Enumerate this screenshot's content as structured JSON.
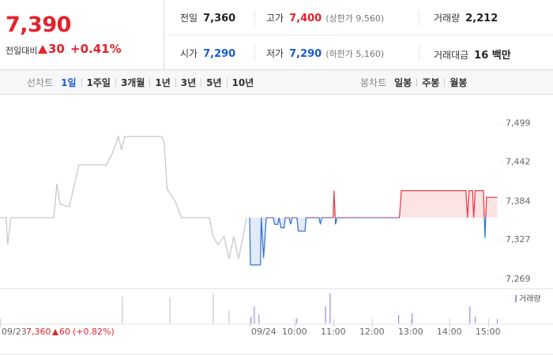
{
  "header": {
    "price": "7,390",
    "change_label": "전일대비",
    "change": "30",
    "change_rate": "+0.41%",
    "color": "#e3222d",
    "stats": [
      {
        "label": "전일",
        "value": "7,360",
        "color": "#222222"
      },
      {
        "label": "고가",
        "value": "7,400",
        "note": "(상한가 9,560)",
        "color": "#e3222d"
      },
      {
        "label": "거래량",
        "value": "2,212",
        "color": "#222222"
      },
      {
        "label": "시가",
        "value": "7,290",
        "color": "#1a5bd0"
      },
      {
        "label": "저가",
        "value": "7,290",
        "note": "(하한가 5,160)",
        "color": "#1a5bd0"
      },
      {
        "label": "거래대금",
        "value": "16 백만",
        "color": "#222222"
      }
    ]
  },
  "tabs": {
    "line_label": "선차트",
    "line": [
      "1일",
      "1주일",
      "3개월",
      "1년",
      "3년",
      "5년",
      "10년"
    ],
    "selected_index": 0,
    "candle_label": "봉차트",
    "candle": [
      "일봉",
      "주봉",
      "월봉"
    ]
  },
  "chart_data": {
    "type": "line",
    "baseline": 7360,
    "xlim": [
      2.39,
      15.27
    ],
    "ylim": [
      7256,
      7536
    ],
    "yticks": [
      {
        "value": 7499,
        "label": "7,499"
      },
      {
        "value": 7442,
        "label": "7,442"
      },
      {
        "value": 7384,
        "label": "7,384"
      },
      {
        "value": 7327,
        "label": "7,327"
      },
      {
        "value": 7269,
        "label": "7,269"
      }
    ],
    "xticks": [
      {
        "value": 2.39,
        "label": "09/23"
      },
      {
        "value": 8.84,
        "label": "09/24"
      },
      {
        "value": 10,
        "label": "10:00"
      },
      {
        "value": 11,
        "label": "11:00"
      },
      {
        "value": 12,
        "label": "12:00"
      },
      {
        "value": 13,
        "label": "13:00"
      },
      {
        "value": 14,
        "label": "14:00"
      },
      {
        "value": 15,
        "label": "15:00"
      }
    ],
    "series": [
      {
        "color": "#c8c8c8",
        "x": [
          2.39,
          2.55,
          2.59,
          2.67,
          3.2,
          3.78,
          3.86,
          3.94,
          4.18,
          4.43,
          5.14,
          5.29,
          5.45,
          5.53,
          5.61,
          6.57,
          6.63,
          6.71,
          6.92,
          7.08,
          7.8,
          7.9,
          8.02,
          8.18,
          8.31,
          8.43,
          8.55,
          8.67,
          8.76
        ],
        "values": [
          7360,
          7360,
          7320,
          7360,
          7360,
          7360,
          7410,
          7380,
          7376,
          7438,
          7438,
          7455,
          7480,
          7460,
          7480,
          7480,
          7472,
          7402,
          7384,
          7360,
          7360,
          7332,
          7320,
          7332,
          7299,
          7332,
          7299,
          7332,
          7360
        ]
      },
      {
        "color": "#e8404c",
        "color_below": "#3a76d2",
        "x": [
          8.84,
          8.86,
          9.12,
          9.14,
          9.2,
          9.27,
          9.45,
          9.49,
          9.57,
          9.6,
          9.65,
          9.73,
          9.76,
          9.86,
          9.9,
          9.94,
          10.06,
          10.1,
          10.27,
          10.3,
          10.63,
          10.67,
          10.7,
          11.0,
          11.02,
          11.06,
          11.1,
          12.71,
          12.76,
          14.43,
          14.47,
          14.51,
          14.6,
          14.63,
          14.67,
          14.88,
          14.92,
          14.96,
          15.24
        ],
        "values": [
          7360,
          7290,
          7290,
          7360,
          7300,
          7360,
          7360,
          7350,
          7350,
          7360,
          7345,
          7345,
          7360,
          7360,
          7350,
          7360,
          7360,
          7340,
          7340,
          7360,
          7360,
          7350,
          7360,
          7360,
          7400,
          7350,
          7360,
          7360,
          7400,
          7400,
          7360,
          7400,
          7400,
          7360,
          7400,
          7400,
          7330,
          7390,
          7390
        ]
      }
    ],
    "volume": {
      "name": "거래량",
      "series": [
        {
          "color": "#c8c8c8",
          "x": [
            5.55,
            6.78,
            7.9,
            8.31
          ],
          "values": [
            384,
            360,
            420,
            180
          ]
        },
        {
          "color": "#9c8fd8",
          "x": [
            8.88,
            8.96,
            9.08,
            10.06,
            10.8,
            10.92,
            12.69,
            13.04,
            14.53,
            14.67,
            15.24
          ],
          "values": [
            96,
            240,
            120,
            72,
            240,
            420,
            120,
            144,
            240,
            96,
            60
          ]
        }
      ]
    },
    "annotation": {
      "close": "7,360",
      "change": "60",
      "rate": "(+0.82%)",
      "color": "#e3222d"
    }
  }
}
